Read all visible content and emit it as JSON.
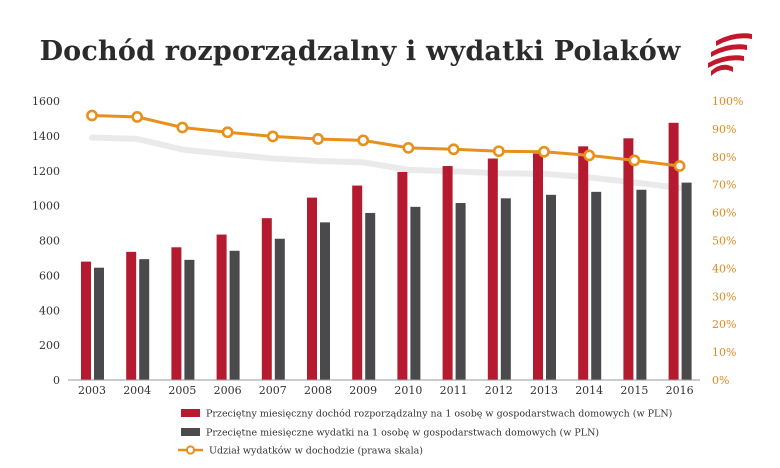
{
  "title": "Dochód rozporządzalny i wydatki Polaków",
  "colors": {
    "income": "#b51a30",
    "expenses": "#4a4a4c",
    "share": "#e8901c",
    "logo": "#c4172c"
  },
  "icons": {
    "logo": "flag-stripes-logo"
  },
  "chart_data": {
    "type": "bar",
    "categories": [
      "2003",
      "2004",
      "2005",
      "2006",
      "2007",
      "2008",
      "2009",
      "2010",
      "2011",
      "2012",
      "2013",
      "2014",
      "2015",
      "2016"
    ],
    "series": [
      {
        "name": "Przeciętny miesięczny dochód rozporządzalny na 1 osobę w gospodarstwach domowych (w PLN)",
        "type": "bar",
        "axis": "left",
        "values": [
          679,
          735,
          761,
          834,
          928,
          1046,
          1115,
          1193,
          1227,
          1270,
          1299,
          1340,
          1386,
          1475
        ]
      },
      {
        "name": "Przeciętne miesięczne wydatki na 1 osobę w gospodarstwach domowych (w PLN)",
        "type": "bar",
        "axis": "left",
        "values": [
          644,
          693,
          689,
          741,
          810,
          904,
          958,
          993,
          1015,
          1042,
          1062,
          1079,
          1091,
          1132
        ]
      },
      {
        "name": "Udział wydatków w dochodzie (prawa skala)",
        "type": "line",
        "axis": "right",
        "values": [
          94.8,
          94.3,
          90.5,
          88.8,
          87.3,
          86.4,
          85.9,
          83.2,
          82.7,
          82.0,
          81.8,
          80.5,
          78.7,
          76.7
        ]
      }
    ],
    "left_axis": {
      "ylim": [
        0,
        1600
      ],
      "ticks": [
        "0",
        "200",
        "400",
        "600",
        "800",
        "1000",
        "1200",
        "1400",
        "1600"
      ]
    },
    "right_axis": {
      "ylim": [
        0,
        100
      ],
      "ticks": [
        "0%",
        "10%",
        "20%",
        "30%",
        "40%",
        "50%",
        "60%",
        "70%",
        "80%",
        "90%",
        "100%"
      ]
    },
    "grid": false,
    "legend_position": "bottom"
  }
}
